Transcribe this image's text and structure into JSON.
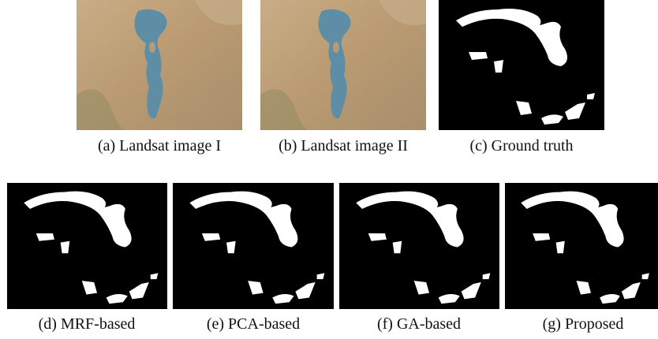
{
  "subfigures": [
    {
      "caption": "(a) Landsat image I"
    },
    {
      "caption": "(b) Landsat image II"
    },
    {
      "caption": "(c) Ground truth"
    },
    {
      "caption": "(d) MRF-based"
    },
    {
      "caption": "(e) PCA-based"
    },
    {
      "caption": "(f) GA-based"
    },
    {
      "caption": "(g) Proposed"
    }
  ]
}
